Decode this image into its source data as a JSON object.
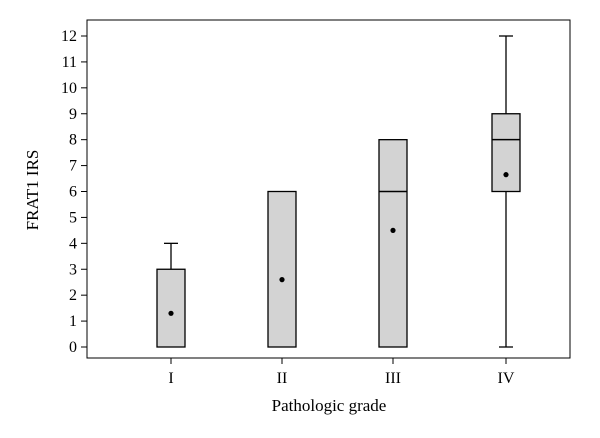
{
  "chart_data": {
    "type": "box",
    "title": "",
    "xlabel": "Pathologic grade",
    "ylabel": "FRAT1 IRS",
    "ylim": [
      0,
      12
    ],
    "yticks": [
      0,
      1,
      2,
      3,
      4,
      5,
      6,
      7,
      8,
      9,
      10,
      11,
      12
    ],
    "categories": [
      "I",
      "II",
      "III",
      "IV"
    ],
    "boxes": [
      {
        "category": "I",
        "min": 0,
        "q1": 0,
        "median": 0,
        "q3": 3,
        "max": 4,
        "mean": 1.3
      },
      {
        "category": "II",
        "min": 0,
        "q1": 0,
        "median": 0,
        "q3": 6,
        "max": 6,
        "mean": 2.6
      },
      {
        "category": "III",
        "min": 0,
        "q1": 0,
        "median": 6,
        "q3": 8,
        "max": 8,
        "mean": 4.5
      },
      {
        "category": "IV",
        "min": 0,
        "q1": 6,
        "median": 8,
        "q3": 9,
        "max": 12,
        "mean": 6.65
      }
    ],
    "colors": {
      "box_fill": "#d3d3d3",
      "stroke": "#000000",
      "background": "#ffffff"
    },
    "grid": false
  }
}
